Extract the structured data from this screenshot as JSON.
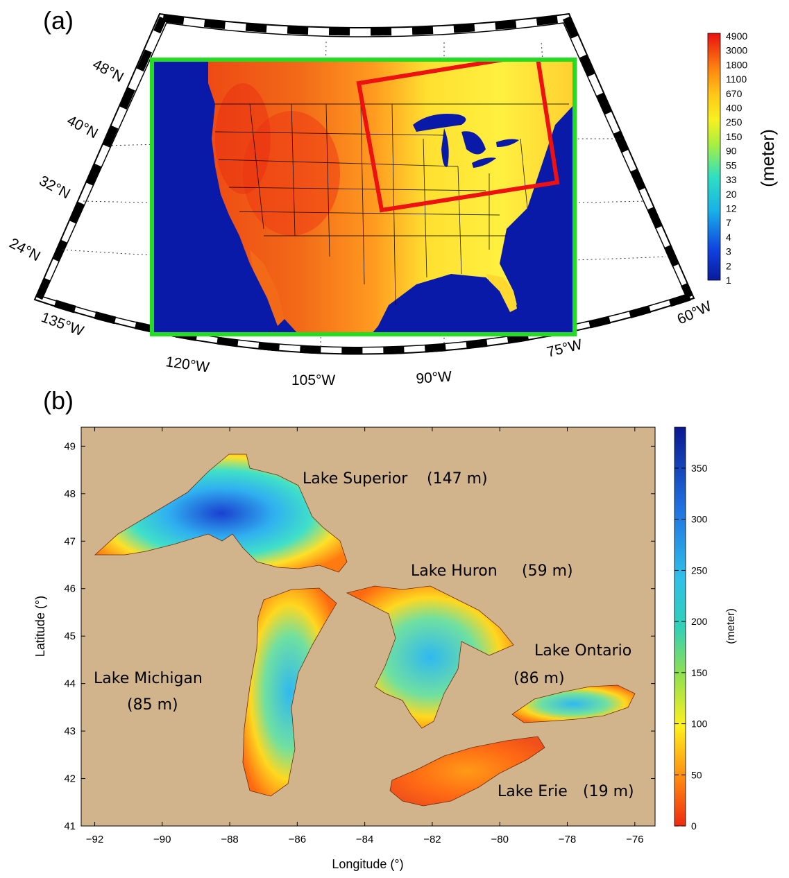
{
  "panel_a": {
    "label": "(a)",
    "latitude_labels": [
      "48°N",
      "40°N",
      "32°N",
      "24°N"
    ],
    "longitude_labels": [
      "135°W",
      "120°W",
      "105°W",
      "90°W",
      "75°W",
      "60°W"
    ],
    "colorbar": {
      "unit": "(meter)",
      "ticks": [
        "4900",
        "3000",
        "1800",
        "1100",
        "670",
        "400",
        "250",
        "150",
        "90",
        "55",
        "33",
        "20",
        "12",
        "7",
        "4",
        "3",
        "2",
        "1"
      ],
      "scale": "log"
    },
    "boxes": {
      "outer_domain_color": "#22dd22",
      "inner_domain_color": "#ee1111"
    }
  },
  "panel_b": {
    "label": "(b)",
    "xlabel": "Longitude (°)",
    "ylabel": "Latitude (°)",
    "xticks": [
      "−92",
      "−90",
      "−88",
      "−86",
      "−84",
      "−82",
      "−80",
      "−78",
      "−76"
    ],
    "yticks": [
      "41",
      "42",
      "43",
      "44",
      "45",
      "46",
      "47",
      "48",
      "49"
    ],
    "xlim": [
      -92.4,
      -75.4
    ],
    "ylim": [
      41,
      49.4
    ],
    "background_color": "#d2b48c",
    "colorbar": {
      "unit": "(meter)",
      "ticks": [
        "350",
        "300",
        "250",
        "200",
        "150",
        "100",
        "50",
        "0"
      ],
      "range": [
        0,
        390
      ]
    },
    "lakes": [
      {
        "name": "Lake Superior",
        "depth": "(147 m)"
      },
      {
        "name": "Lake Huron",
        "depth": "(59 m)"
      },
      {
        "name": "Lake Ontario",
        "depth": "(86 m)"
      },
      {
        "name": "Lake Michigan",
        "depth": "(85 m)"
      },
      {
        "name": "Lake Erie",
        "depth": "(19 m)"
      }
    ]
  }
}
